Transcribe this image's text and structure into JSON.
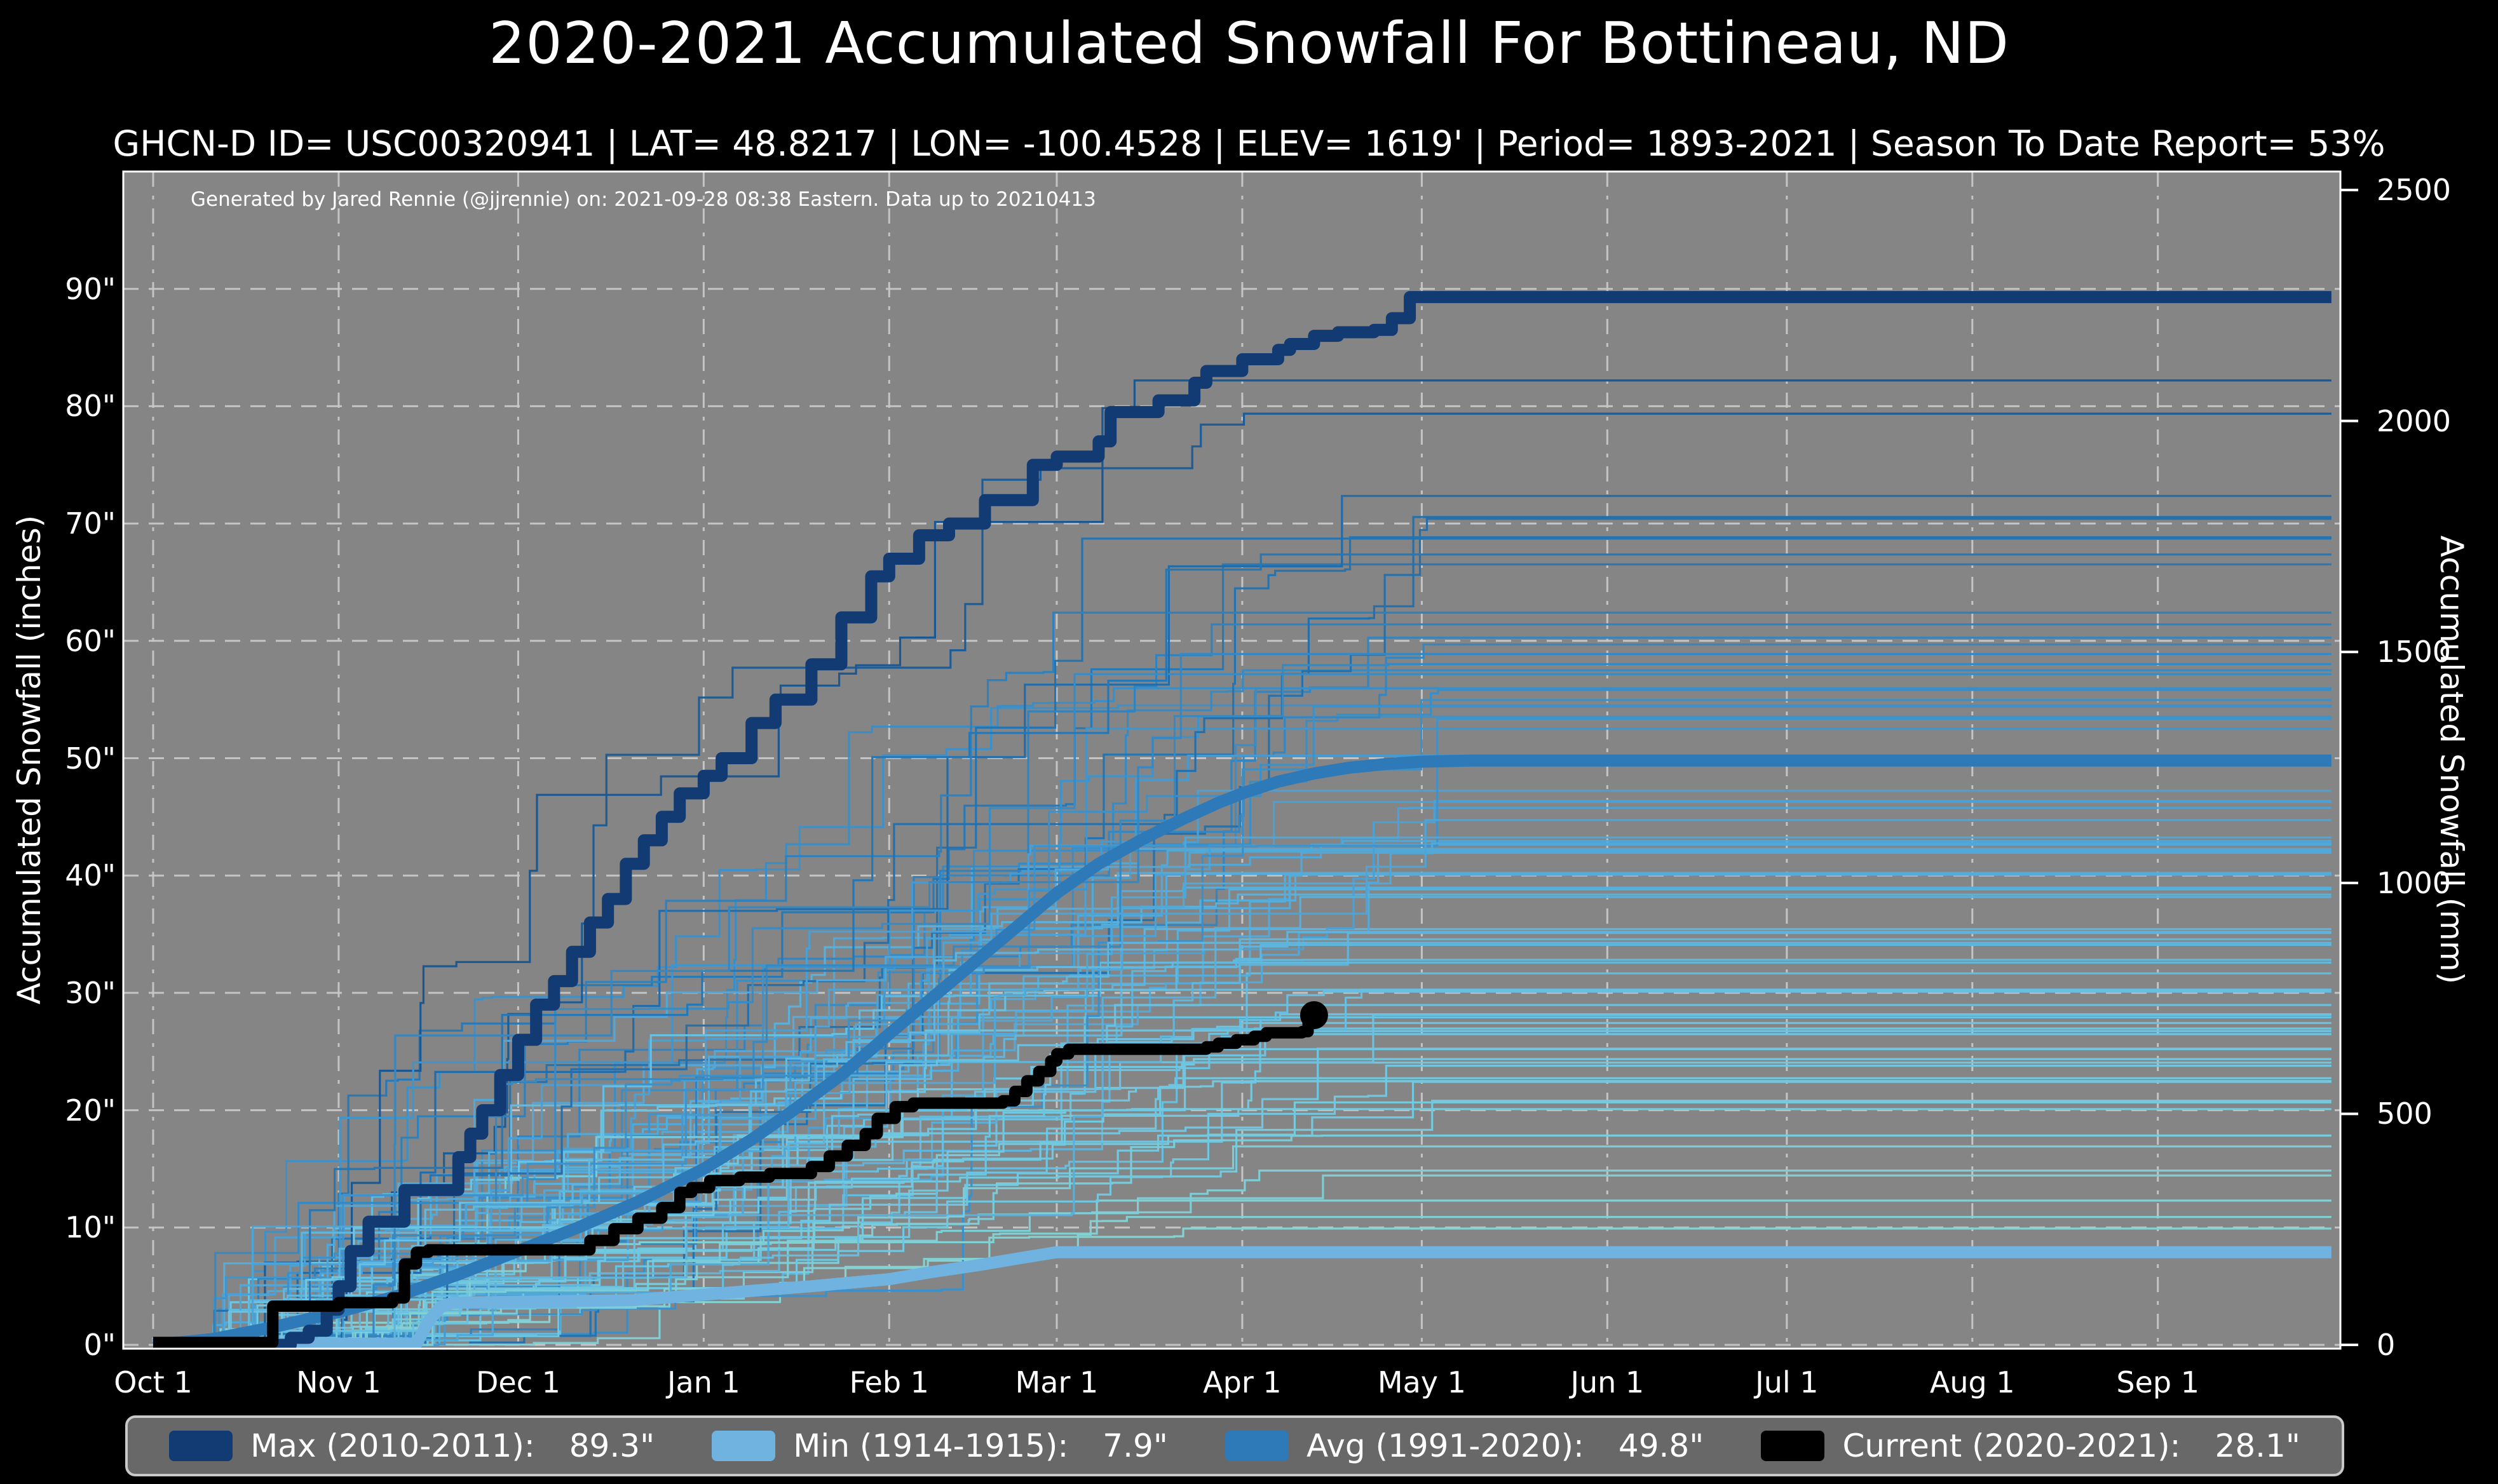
{
  "title": "2020-2021 Accumulated Snowfall For Bottineau, ND",
  "subtitle": "GHCN-D ID= USC00320941 | LAT= 48.8217 | LON= -100.4528 | ELEV= 1619' | Period= 1893-2021 | Season To Date Report= 53%",
  "attribution": "Generated by Jared Rennie (@jjrennie) on: 2021-09-28 08:38 Eastern. Data up to 20210413",
  "colors": {
    "figure_bg": "#000000",
    "plot_bg": "#858585",
    "grid": "#c8c8c8",
    "text": "#ffffff",
    "spine": "#ffffff",
    "max": "#123a73",
    "avg": "#2e79b8",
    "min": "#70b3e0",
    "current": "#000000",
    "legend_bg": "#686868",
    "legend_border": "#c9c9c9",
    "year_scale": [
      "#8ad5cd",
      "#6cc5e2",
      "#49a0d6",
      "#2677b5",
      "#164a82"
    ]
  },
  "legend": {
    "items": [
      {
        "label": "Max (2010-2011):",
        "value": "89.3\"",
        "color_key": "max"
      },
      {
        "label": "Min (1914-1915):",
        "value": "7.9\"",
        "color_key": "min"
      },
      {
        "label": "Avg (1991-2020):",
        "value": "49.8\"",
        "color_key": "avg"
      },
      {
        "label": "Current (2020-2021):",
        "value": "28.1\"",
        "color_key": "current"
      }
    ]
  },
  "chart_data": {
    "type": "line",
    "x_unit": "days since Oct 1",
    "x_range_days": [
      0,
      365
    ],
    "x_ticks": [
      {
        "label": "Oct 1",
        "day": 0
      },
      {
        "label": "Nov 1",
        "day": 31
      },
      {
        "label": "Dec 1",
        "day": 61
      },
      {
        "label": "Jan 1",
        "day": 92
      },
      {
        "label": "Feb 1",
        "day": 123
      },
      {
        "label": "Mar 1",
        "day": 151
      },
      {
        "label": "Apr 1",
        "day": 182
      },
      {
        "label": "May 1",
        "day": 212
      },
      {
        "label": "Jun 1",
        "day": 243
      },
      {
        "label": "Jul 1",
        "day": 273
      },
      {
        "label": "Aug 1",
        "day": 304
      },
      {
        "label": "Sep 1",
        "day": 335
      }
    ],
    "y_left": {
      "label": "Accumulated Snowfall (inches)",
      "ticks": [
        0,
        10,
        20,
        30,
        40,
        50,
        60,
        70,
        80,
        90
      ],
      "tick_suffix": "\"",
      "range": [
        0,
        100
      ]
    },
    "y_right": {
      "label": "Accumulated Snowfall (mm)",
      "ticks": [
        0,
        500,
        1000,
        1500,
        2000,
        2500
      ],
      "range": [
        0,
        2540
      ]
    },
    "grid": true,
    "legend_position": "bottom",
    "series": [
      {
        "id": "max",
        "name": "Max (2010-2011)",
        "final_value_in": 89.3,
        "color_key": "max",
        "width": 19,
        "step": true,
        "points": [
          [
            0,
            0
          ],
          [
            20,
            0
          ],
          [
            23,
            0.6
          ],
          [
            26,
            1.2
          ],
          [
            29,
            3
          ],
          [
            31,
            5
          ],
          [
            33,
            8
          ],
          [
            36,
            10.5
          ],
          [
            41,
            10.5
          ],
          [
            42,
            13.2
          ],
          [
            49,
            13.2
          ],
          [
            51,
            16
          ],
          [
            53,
            18
          ],
          [
            55,
            20
          ],
          [
            58,
            23
          ],
          [
            61,
            26
          ],
          [
            64,
            29
          ],
          [
            67,
            31
          ],
          [
            70,
            33.5
          ],
          [
            73,
            36
          ],
          [
            76,
            38
          ],
          [
            79,
            41
          ],
          [
            82,
            43
          ],
          [
            85,
            45
          ],
          [
            88,
            47
          ],
          [
            92,
            48.5
          ],
          [
            95,
            50
          ],
          [
            100,
            53
          ],
          [
            104,
            55
          ],
          [
            110,
            58
          ],
          [
            115,
            62
          ],
          [
            120,
            65.5
          ],
          [
            123,
            67
          ],
          [
            128,
            69
          ],
          [
            133,
            70
          ],
          [
            139,
            72
          ],
          [
            147,
            75
          ],
          [
            151,
            75.7
          ],
          [
            158,
            77
          ],
          [
            160,
            79.5
          ],
          [
            168,
            80.5
          ],
          [
            174,
            82
          ],
          [
            176,
            83
          ],
          [
            182,
            84
          ],
          [
            188,
            84.8
          ],
          [
            190,
            85.3
          ],
          [
            194,
            86
          ],
          [
            198,
            86.3
          ],
          [
            204,
            86.5
          ],
          [
            207,
            87.5
          ],
          [
            210,
            89.3
          ],
          [
            364,
            89.3
          ]
        ]
      },
      {
        "id": "avg",
        "name": "Avg (1991-2020)",
        "final_value_in": 49.8,
        "color_key": "avg",
        "width": 19,
        "step": false,
        "points": [
          [
            0,
            0
          ],
          [
            10,
            0.5
          ],
          [
            20,
            1.5
          ],
          [
            31,
            2.8
          ],
          [
            41,
            4.2
          ],
          [
            51,
            6
          ],
          [
            61,
            8
          ],
          [
            71,
            10
          ],
          [
            81,
            12.2
          ],
          [
            92,
            15
          ],
          [
            100,
            17.5
          ],
          [
            107,
            20
          ],
          [
            115,
            23
          ],
          [
            123,
            26.5
          ],
          [
            130,
            29.5
          ],
          [
            137,
            32.5
          ],
          [
            144,
            35.5
          ],
          [
            151,
            38.5
          ],
          [
            158,
            41
          ],
          [
            165,
            43
          ],
          [
            172,
            44.8
          ],
          [
            178,
            46.2
          ],
          [
            182,
            47
          ],
          [
            188,
            48
          ],
          [
            194,
            48.7
          ],
          [
            200,
            49.2
          ],
          [
            206,
            49.5
          ],
          [
            212,
            49.7
          ],
          [
            220,
            49.8
          ],
          [
            364,
            49.8
          ]
        ]
      },
      {
        "id": "min",
        "name": "Min (1914-1915)",
        "final_value_in": 7.9,
        "color_key": "min",
        "width": 19,
        "step": false,
        "points": [
          [
            0,
            0.1
          ],
          [
            44,
            0.1
          ],
          [
            46,
            2
          ],
          [
            48,
            3.2
          ],
          [
            50,
            3.6
          ],
          [
            80,
            3.8
          ],
          [
            90,
            4.2
          ],
          [
            100,
            4.6
          ],
          [
            110,
            5
          ],
          [
            123,
            5.6
          ],
          [
            130,
            6.2
          ],
          [
            138,
            6.8
          ],
          [
            145,
            7.4
          ],
          [
            151,
            7.9
          ],
          [
            364,
            7.9
          ]
        ]
      },
      {
        "id": "current",
        "name": "Current (2020-2021)",
        "final_value_in": 28.1,
        "color_key": "current",
        "width": 18,
        "step": true,
        "end_marker": true,
        "points": [
          [
            0,
            0.2
          ],
          [
            19,
            0.2
          ],
          [
            20,
            3.3
          ],
          [
            31,
            3.6
          ],
          [
            40,
            4.0
          ],
          [
            42,
            6.9
          ],
          [
            44,
            7.9
          ],
          [
            46,
            8.1
          ],
          [
            71,
            8.1
          ],
          [
            73,
            8.9
          ],
          [
            77,
            9.9
          ],
          [
            81,
            10.8
          ],
          [
            85,
            11.7
          ],
          [
            88,
            13.0
          ],
          [
            90,
            13.4
          ],
          [
            93,
            14.0
          ],
          [
            98,
            14.3
          ],
          [
            103,
            14.6
          ],
          [
            110,
            15.2
          ],
          [
            113,
            16.1
          ],
          [
            116,
            17.0
          ],
          [
            119,
            18.0
          ],
          [
            121,
            19.3
          ],
          [
            124,
            20.3
          ],
          [
            127,
            20.6
          ],
          [
            142,
            20.8
          ],
          [
            144,
            21.6
          ],
          [
            146,
            22.5
          ],
          [
            148,
            23.3
          ],
          [
            150,
            24.2
          ],
          [
            151,
            24.8
          ],
          [
            153,
            25.2
          ],
          [
            176,
            25.4
          ],
          [
            178,
            25.7
          ],
          [
            181,
            26.0
          ],
          [
            184,
            26.3
          ],
          [
            186,
            26.6
          ],
          [
            192,
            26.7
          ],
          [
            193,
            28.1
          ],
          [
            194,
            28.1
          ]
        ]
      }
    ],
    "background_years": {
      "description": "One thin line per season 1893-2021, colored light-cyan (low totals) to dark navy (high totals)",
      "count": 88,
      "value_range_in": [
        6,
        88
      ],
      "start_day_range": [
        10,
        48
      ],
      "end_day_range": [
        150,
        215
      ],
      "seed": 42,
      "width": 3.2
    }
  }
}
